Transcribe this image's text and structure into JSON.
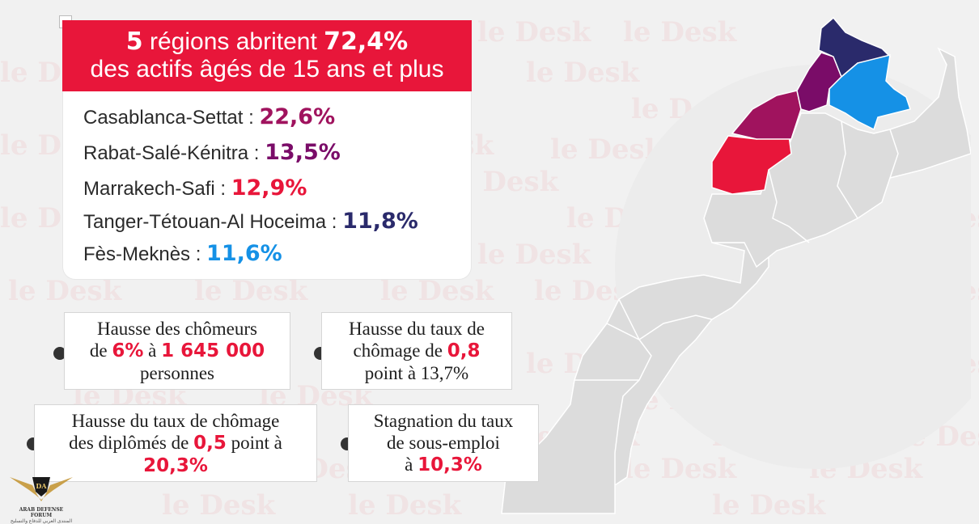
{
  "watermark_text": "le Desk",
  "header": {
    "line1_bold_count": "5",
    "line1_text": "régions abritent",
    "line1_bold_pct": "72,4%",
    "line2": "des actifs âgés de 15 ans et plus"
  },
  "regions": [
    {
      "name": "Casablanca-Settat :",
      "value": "22,6%",
      "color": "#a0135e"
    },
    {
      "name": "Rabat-Salé-Kénitra :",
      "value": "13,5%",
      "color": "#7a0c68"
    },
    {
      "name": "Marrakech-Safi :",
      "value": "12,9%",
      "color": "#e8163a"
    },
    {
      "name": "Tanger-Tétouan-Al Hoceima :",
      "value": "11,8%",
      "color": "#2a2a6b"
    },
    {
      "name": "Fès-Meknès :",
      "value": "11,6%",
      "color": "#1591e6"
    }
  ],
  "stats": {
    "unemployed": {
      "line1": "Hausse des chômeurs",
      "from_prefix": "de",
      "from_value": "6%",
      "to_prefix": "à",
      "to_value": "1 645 000",
      "line3": "personnes"
    },
    "rate": {
      "line1": "Hausse du taux de",
      "line2_prefix": "chômage de",
      "line2_value": "0,8",
      "line3": "point à 13,7%"
    },
    "graduates": {
      "line1": "Hausse du taux de chômage",
      "line2_prefix": "des diplômés de",
      "line2_value": "0,5",
      "line2_suffix": "point à",
      "line3_value": "20,3%"
    },
    "underemployment": {
      "line1": "Stagnation du taux",
      "line2": "de sous-emploi",
      "line3_prefix": "à",
      "line3_value": "10,3%"
    }
  },
  "colors": {
    "accent_red": "#e8163a",
    "map_base": "#dddddd",
    "casablanca": "#a0135e",
    "rabat": "#7a0c68",
    "marrakech": "#e8163a",
    "tanger": "#2a2a6b",
    "fes": "#1591e6"
  },
  "logo": {
    "badge": "DA",
    "name": "ARAB DEFENSE FORUM",
    "name_ar": "المنتدى العربي للدفاع والتسليح"
  }
}
